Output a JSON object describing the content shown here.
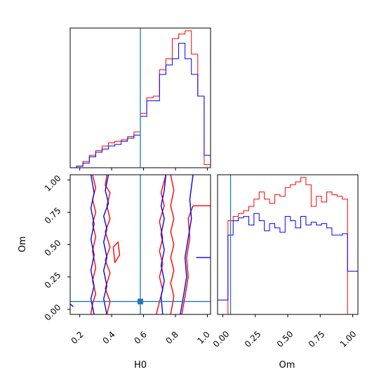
{
  "colors": {
    "series_1": "#ff0000",
    "series_2": "#0000ff",
    "truth": "#1f77b4"
  },
  "chart_data": [
    {
      "type": "histogram",
      "panel": "H0 marginal",
      "xlim": [
        0.14,
        1.02
      ],
      "truth": 0.58,
      "x_ticks": [
        0.2,
        0.4,
        0.6,
        0.8,
        1.0
      ],
      "bin_edges": [
        0.14,
        0.18,
        0.22,
        0.26,
        0.3,
        0.34,
        0.38,
        0.42,
        0.46,
        0.5,
        0.54,
        0.58,
        0.62,
        0.66,
        0.7,
        0.74,
        0.78,
        0.82,
        0.86,
        0.9,
        0.94,
        0.98,
        1.02
      ],
      "series": [
        {
          "values": [
            0,
            1,
            4,
            8,
            11,
            14,
            16,
            17,
            18,
            20,
            23,
            35,
            45,
            46,
            63,
            70,
            83,
            86,
            88,
            73,
            46,
            2
          ],
          "color": "#ff0000"
        },
        {
          "values": [
            0,
            1,
            3,
            7,
            10,
            12,
            14,
            15,
            17,
            19,
            21,
            33,
            43,
            43,
            60,
            66,
            70,
            80,
            70,
            60,
            46,
            8
          ],
          "color": "#0000ff"
        }
      ]
    },
    {
      "type": "contour",
      "panel": "Om vs H0",
      "xlabel": "H0",
      "ylabel": "Om",
      "xlim": [
        0.14,
        1.02
      ],
      "ylim": [
        -0.04,
        1.04
      ],
      "x_ticks": [
        0.2,
        0.4,
        0.6,
        0.8,
        1.0
      ],
      "y_ticks": [
        0.0,
        0.25,
        0.5,
        0.75,
        1.0
      ],
      "truth": [
        0.58,
        0.06
      ],
      "series": [
        {
          "color": "#ff0000",
          "contours": [
            [
              [
                0.27,
                -0.04
              ],
              [
                0.28,
                0.04
              ],
              [
                0.3,
                0.12
              ],
              [
                0.28,
                0.22
              ],
              [
                0.3,
                0.32
              ],
              [
                0.28,
                0.45
              ],
              [
                0.3,
                0.56
              ],
              [
                0.28,
                0.66
              ],
              [
                0.3,
                0.75
              ],
              [
                0.28,
                0.85
              ],
              [
                0.3,
                0.94
              ],
              [
                0.28,
                1.04
              ]
            ],
            [
              [
                0.37,
                1.04
              ],
              [
                0.36,
                0.96
              ],
              [
                0.39,
                0.9
              ],
              [
                0.37,
                0.8
              ],
              [
                0.39,
                0.7
              ],
              [
                0.36,
                0.6
              ],
              [
                0.39,
                0.48
              ],
              [
                0.36,
                0.38
              ],
              [
                0.39,
                0.28
              ],
              [
                0.36,
                0.16
              ],
              [
                0.39,
                0.06
              ],
              [
                0.37,
                -0.04
              ]
            ],
            [
              [
                0.42,
                0.36
              ],
              [
                0.45,
                0.42
              ],
              [
                0.44,
                0.52
              ],
              [
                0.41,
                0.48
              ],
              [
                0.42,
                0.36
              ]
            ],
            [
              [
                0.68,
                -0.04
              ],
              [
                0.7,
                0.06
              ],
              [
                0.72,
                0.15
              ],
              [
                0.7,
                0.25
              ],
              [
                0.72,
                0.35
              ],
              [
                0.7,
                0.45
              ],
              [
                0.72,
                0.55
              ],
              [
                0.7,
                0.68
              ],
              [
                0.73,
                0.8
              ],
              [
                0.71,
                0.9
              ],
              [
                0.74,
                1.04
              ]
            ],
            [
              [
                0.77,
                1.04
              ],
              [
                0.79,
                0.92
              ],
              [
                0.77,
                0.8
              ],
              [
                0.79,
                0.7
              ],
              [
                0.77,
                0.6
              ],
              [
                0.79,
                0.5
              ],
              [
                0.77,
                0.4
              ],
              [
                0.79,
                0.3
              ],
              [
                0.77,
                0.2
              ],
              [
                0.79,
                0.1
              ],
              [
                0.77,
                -0.04
              ]
            ],
            [
              [
                0.84,
                -0.04
              ],
              [
                0.86,
                0.1
              ],
              [
                0.88,
                0.25
              ],
              [
                0.87,
                0.4
              ],
              [
                0.89,
                0.55
              ],
              [
                0.88,
                0.7
              ],
              [
                0.91,
                0.8
              ],
              [
                1.02,
                0.8
              ]
            ]
          ]
        },
        {
          "color": "#0000ff",
          "contours": [
            [
              [
                0.29,
                -0.04
              ],
              [
                0.27,
                0.08
              ],
              [
                0.29,
                0.18
              ],
              [
                0.27,
                0.3
              ],
              [
                0.29,
                0.42
              ],
              [
                0.27,
                0.54
              ],
              [
                0.29,
                0.66
              ],
              [
                0.27,
                0.78
              ],
              [
                0.29,
                0.9
              ],
              [
                0.27,
                1.04
              ]
            ],
            [
              [
                0.38,
                1.04
              ],
              [
                0.36,
                0.92
              ],
              [
                0.38,
                0.82
              ],
              [
                0.35,
                0.72
              ],
              [
                0.37,
                0.62
              ],
              [
                0.35,
                0.52
              ],
              [
                0.37,
                0.4
              ],
              [
                0.35,
                0.3
              ],
              [
                0.37,
                0.18
              ],
              [
                0.35,
                0.08
              ],
              [
                0.37,
                -0.04
              ]
            ],
            [
              [
                0.74,
                1.04
              ],
              [
                0.73,
                0.92
              ],
              [
                0.71,
                0.8
              ],
              [
                0.73,
                0.7
              ],
              [
                0.71,
                0.58
              ],
              [
                0.73,
                0.46
              ],
              [
                0.71,
                0.34
              ],
              [
                0.73,
                0.22
              ],
              [
                0.71,
                0.1
              ],
              [
                0.72,
                -0.04
              ]
            ],
            [
              [
                0.83,
                -0.04
              ],
              [
                0.85,
                0.1
              ],
              [
                0.87,
                0.25
              ],
              [
                0.86,
                0.4
              ],
              [
                0.88,
                0.55
              ],
              [
                0.9,
                0.7
              ],
              [
                0.89,
                0.85
              ],
              [
                0.91,
                1.04
              ]
            ],
            [
              [
                0.93,
                0.4
              ],
              [
                1.02,
                0.4
              ]
            ],
            [
              [
                0.1,
                0.06
              ],
              [
                0.14,
                0.04
              ],
              [
                0.16,
                0.02
              ]
            ]
          ]
        }
      ]
    },
    {
      "type": "histogram",
      "panel": "Om marginal",
      "xlabel": "Om",
      "xlim": [
        -0.04,
        1.04
      ],
      "truth": 0.06,
      "x_ticks": [
        0.0,
        0.25,
        0.5,
        0.75,
        1.0
      ],
      "bin_edges": [
        -0.04,
        0.0,
        0.04,
        0.08,
        0.12,
        0.16,
        0.2,
        0.24,
        0.28,
        0.32,
        0.36,
        0.4,
        0.44,
        0.48,
        0.52,
        0.56,
        0.6,
        0.64,
        0.68,
        0.72,
        0.76,
        0.8,
        0.84,
        0.88,
        0.92,
        0.96,
        1.0,
        1.04
      ],
      "series": [
        {
          "values": [
            0,
            0,
            65,
            68,
            70,
            72,
            75,
            80,
            85,
            80,
            77,
            83,
            82,
            88,
            90,
            92,
            95,
            90,
            75,
            82,
            78,
            85,
            83,
            82,
            80,
            0,
            0
          ],
          "color": "#ff0000"
        },
        {
          "values": [
            10,
            10,
            55,
            65,
            67,
            68,
            62,
            70,
            65,
            58,
            63,
            60,
            57,
            68,
            65,
            60,
            68,
            62,
            64,
            62,
            63,
            60,
            55,
            55,
            56,
            30,
            30
          ],
          "color": "#0000ff"
        }
      ]
    }
  ],
  "tick_labels": {
    "h0": [
      "0.2",
      "0.4",
      "0.6",
      "0.8",
      "1.0"
    ],
    "om_y": [
      "0.00",
      "0.25",
      "0.50",
      "0.75",
      "1.00"
    ],
    "om_x": [
      "0.00",
      "0.25",
      "0.50",
      "0.75",
      "1.00"
    ]
  },
  "axis_titles": {
    "h0": "H0",
    "om": "Om"
  }
}
